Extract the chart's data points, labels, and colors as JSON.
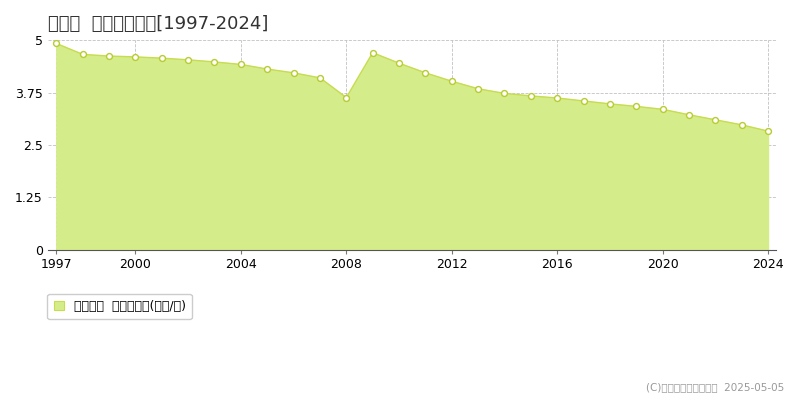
{
  "title": "足寄町  基準地価推移[1997-2024]",
  "years": [
    1997,
    1998,
    1999,
    2000,
    2001,
    2002,
    2003,
    2004,
    2005,
    2006,
    2007,
    2008,
    2009,
    2010,
    2011,
    2012,
    2013,
    2014,
    2015,
    2016,
    2017,
    2018,
    2019,
    2020,
    2021,
    2022,
    2023,
    2024
  ],
  "values": [
    4.92,
    4.66,
    4.62,
    4.6,
    4.57,
    4.53,
    4.48,
    4.42,
    4.31,
    4.22,
    4.1,
    3.63,
    4.7,
    4.45,
    4.22,
    4.02,
    3.84,
    3.73,
    3.67,
    3.62,
    3.55,
    3.48,
    3.42,
    3.35,
    3.22,
    3.1,
    2.98,
    2.83
  ],
  "fill_color": "#d4ed8a",
  "line_color": "#c8dc50",
  "marker_facecolor": "#ffffff",
  "marker_edgecolor": "#b8cc30",
  "ylim": [
    0,
    5
  ],
  "yticks": [
    0,
    1.25,
    2.5,
    3.75,
    5
  ],
  "xlim_min": 1996.7,
  "xlim_max": 2024.3,
  "xticks": [
    1997,
    2000,
    2004,
    2008,
    2012,
    2016,
    2020,
    2024
  ],
  "grid_color": "#bbbbbb",
  "bg_color": "#ffffff",
  "plot_bg_color": "#ffffff",
  "legend_label": "基準地価  平均坪単価(万円/坪)",
  "copyright_text": "(C)土地価格ドットコム  2025-05-05",
  "title_fontsize": 13,
  "axis_fontsize": 9,
  "legend_fontsize": 9
}
